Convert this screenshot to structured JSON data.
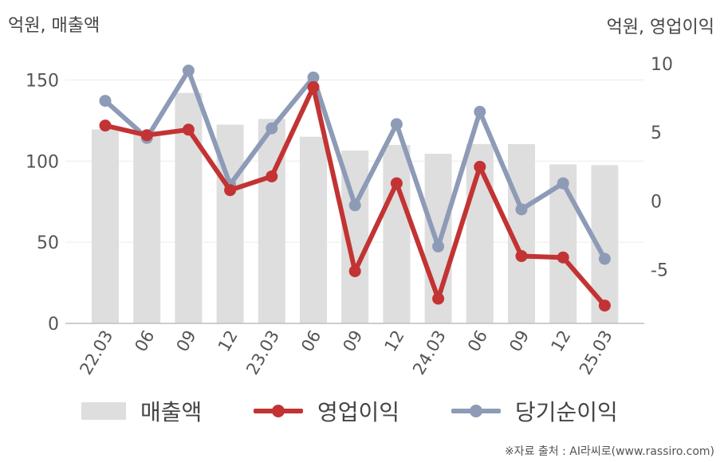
{
  "units": {
    "left": "억원, 매출액",
    "right": "억원, 영업이익"
  },
  "source": "※자료 출처 : AI라씨로(www.rassiro.com)",
  "chart_data": {
    "type": "bar+line",
    "categories": [
      "22.03",
      "06",
      "09",
      "12",
      "23.03",
      "06",
      "09",
      "12",
      "24.03",
      "06",
      "09",
      "12",
      "25.03"
    ],
    "left_axis": {
      "ylim": [
        0,
        160
      ],
      "ticks": [
        0,
        50,
        100,
        150
      ]
    },
    "right_axis": {
      "ylim": [
        -8.9,
        10
      ],
      "ticks": [
        -5,
        0,
        5,
        10
      ]
    },
    "series": [
      {
        "name": "매출액",
        "kind": "bar",
        "axis": "left",
        "color": "#dedede",
        "values": [
          119.5,
          118.5,
          142,
          122.5,
          126,
          115,
          106.5,
          110,
          104.5,
          110.5,
          110.5,
          98,
          97.5
        ]
      },
      {
        "name": "영업이익",
        "kind": "line",
        "axis": "right",
        "color": "#c33333",
        "values": [
          5.5,
          4.8,
          5.2,
          0.8,
          1.8,
          8.3,
          -5.1,
          1.3,
          -7.1,
          2.5,
          -4.0,
          -4.1,
          -7.6
        ]
      },
      {
        "name": "당기순이익",
        "kind": "line",
        "axis": "right",
        "color": "#8e9bb7",
        "values": [
          7.3,
          4.6,
          9.5,
          1.2,
          5.3,
          9.0,
          -0.3,
          5.6,
          -3.3,
          6.5,
          -0.6,
          1.3,
          -4.2
        ]
      }
    ],
    "grid": true,
    "legend": "bottom"
  }
}
